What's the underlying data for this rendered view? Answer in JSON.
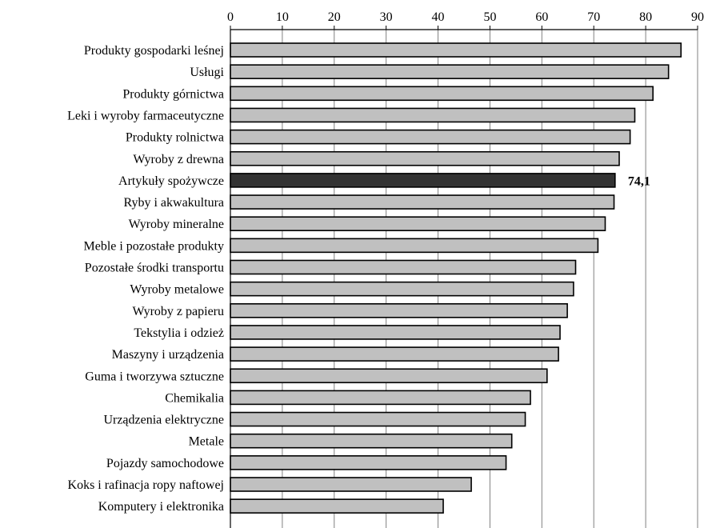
{
  "chart_data": {
    "type": "bar",
    "orientation": "horizontal",
    "title": "",
    "xlabel": "",
    "ylabel": "",
    "xlim": [
      0,
      90
    ],
    "x_ticks": [
      "0",
      "10",
      "20",
      "30",
      "40",
      "50",
      "60",
      "70",
      "80",
      "90"
    ],
    "x_axis_position": "top",
    "grid": true,
    "legend": "none",
    "categories": [
      "Produkty gospodarki leśnej",
      "Usługi",
      "Produkty górnictwa",
      "Leki i wyroby farmaceutyczne",
      "Produkty rolnictwa",
      "Wyroby z drewna",
      "Artykuły spożywcze",
      "Ryby i akwakultura",
      "Wyroby mineralne",
      "Meble i pozostałe produkty",
      "Pozostałe środki transportu",
      "Wyroby metalowe",
      "Wyroby z papieru",
      "Tekstylia i odzież",
      "Maszyny i urządzenia",
      "Guma i tworzywa sztuczne",
      "Chemikalia",
      "Urządzenia elektryczne",
      "Metale",
      "Pojazdy samochodowe",
      "Koks i rafinacja ropy naftowej",
      "Komputery i elektronika"
    ],
    "values": [
      86.8,
      84.4,
      81.4,
      77.9,
      77.0,
      74.9,
      74.1,
      73.9,
      72.2,
      70.8,
      66.5,
      66.1,
      64.9,
      63.5,
      63.2,
      61.0,
      57.8,
      56.8,
      54.2,
      53.1,
      46.4,
      41.0
    ],
    "highlight": {
      "index": 6,
      "label": "74,1"
    },
    "colors": {
      "bar": "#c0c0c0",
      "highlight_bar": "#333333",
      "bar_outline": "#000000",
      "grid": "#808080",
      "axis": "#000000"
    }
  }
}
